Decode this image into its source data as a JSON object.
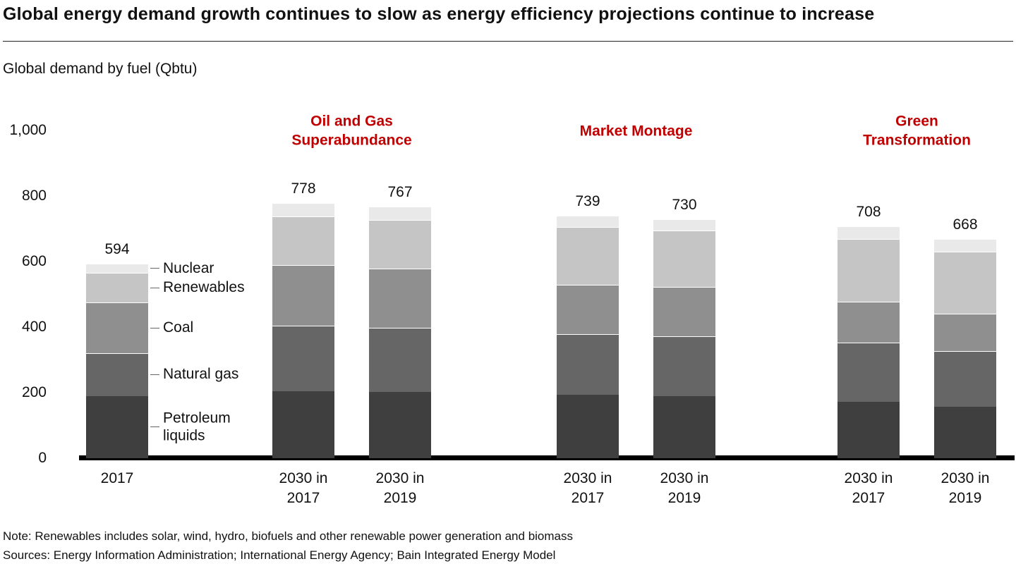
{
  "title": "Global energy demand growth continues to slow as energy efficiency projections continue to increase",
  "subtitle": "Global demand by fuel (Qbtu)",
  "note": "Note: Renewables includes solar, wind, hydro, biofuels and other renewable power generation and biomass",
  "sources": "Sources: Energy Information Administration; International Energy Agency; Bain Integrated Energy Model",
  "colors": {
    "scenario_label_red": "#c00000",
    "axis_black": "#000000",
    "petroleum_liquids": "#3f3f3f",
    "natural_gas": "#666666",
    "coal": "#8f8f8f",
    "renewables": "#c5c5c5",
    "nuclear": "#e9e9e9"
  },
  "chart_data": {
    "type": "bar",
    "stacked": true,
    "title": "Global demand by fuel (Qbtu)",
    "xlabel": "",
    "ylabel": "Global demand by fuel (Qbtu)",
    "ylim": [
      0,
      1000
    ],
    "grid": false,
    "legend_position": "fuel-labels-beside-first-bar",
    "yticks": [
      0,
      200,
      400,
      600,
      800,
      1000
    ],
    "ytick_labels": [
      "0",
      "200",
      "400",
      "600",
      "800",
      "1,000"
    ],
    "categories": [
      "2017",
      "2030 in\n2017",
      "2030 in\n2019",
      "2030 in\n2017",
      "2030 in\n2019",
      "2030 in\n2017",
      "2030 in\n2019"
    ],
    "totals": [
      594,
      778,
      767,
      739,
      730,
      708,
      668
    ],
    "series": [
      {
        "name": "Petroleum liquids",
        "color": "#3f3f3f",
        "values": [
          190,
          205,
          203,
          193,
          190,
          172,
          158
        ]
      },
      {
        "name": "Natural gas",
        "color": "#666666",
        "values": [
          130,
          200,
          195,
          185,
          182,
          180,
          168
        ]
      },
      {
        "name": "Coal",
        "color": "#8f8f8f",
        "values": [
          155,
          185,
          180,
          150,
          150,
          125,
          115
        ]
      },
      {
        "name": "Renewables",
        "color": "#c5c5c5",
        "values": [
          90,
          148,
          149,
          178,
          172,
          192,
          190
        ]
      },
      {
        "name": "Nuclear",
        "color": "#e9e9e9",
        "values": [
          29,
          40,
          40,
          33,
          36,
          39,
          37
        ]
      }
    ],
    "scenario_headers": [
      {
        "label": "Oil and Gas\nSuperabundance",
        "bar_indexes": [
          1,
          2
        ]
      },
      {
        "label": "Market Montage",
        "bar_indexes": [
          3,
          4
        ]
      },
      {
        "label": "Green\nTransformation",
        "bar_indexes": [
          5,
          6
        ]
      }
    ]
  }
}
